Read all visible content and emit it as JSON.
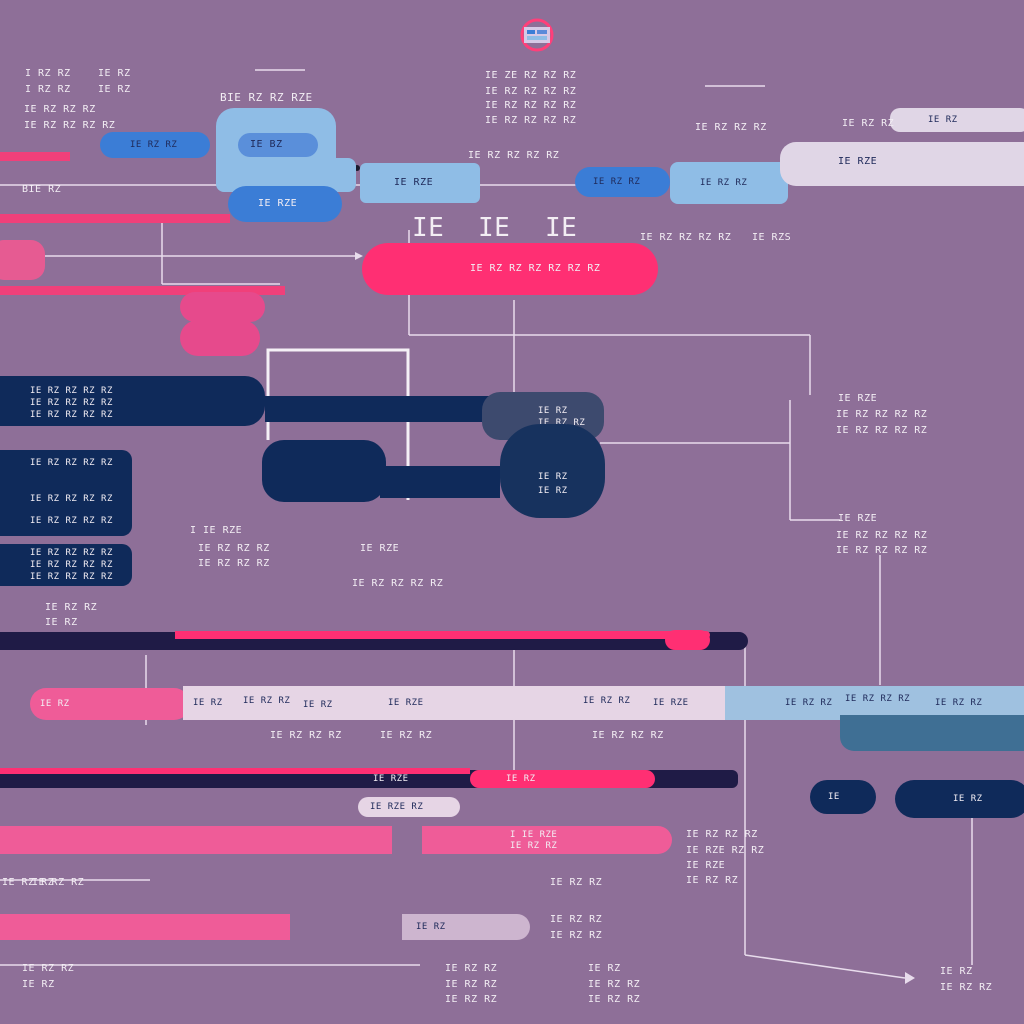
{
  "colors": {
    "background": "#8e6f98",
    "pink": "#f0407a",
    "hot_pink": "#ff2f73",
    "light_blue": "#8fbde6",
    "mid_blue": "#3b7dd6",
    "navy": "#0f2a5a",
    "pale": "#e7dbe7",
    "white": "#f3eef4"
  },
  "icons": [
    "app-logo-icon"
  ],
  "top_labels": {
    "a1": "I RZ RZ",
    "a2": "I RZ RZ",
    "b1": "IE RZ",
    "b2": "IE RZ",
    "c": "BIE RZ RZ RZE",
    "d1": "IE ZE RZ RZ RZ",
    "d2": "IE RZ RZ RZ RZ",
    "d3": "IE RZ RZ RZ RZ",
    "e": "IE RZ RZ RZ RZ",
    "f": "IE RZ RZ RZ",
    "g": "IE RZ RZ RZ RZ",
    "h": "BIE RZ"
  },
  "nodes": {
    "top_left_blue": "IE RZ RZ",
    "top_left_light": "IE BZ",
    "blue_oval": "IE RZE",
    "mid_light": "IE RZE",
    "mid_blue_small": "IE RZ RZ",
    "mid_light_small": "IE RZ RZ",
    "right_pale": "IE RZE",
    "right_pale_b": "IE RZ",
    "big_title_1": "IE",
    "big_title_2": "IE",
    "big_title_3": "IE",
    "pink_main": "IE RZ RZ RZ RZ RZ RZ",
    "side_label": "IE RZ RZ RZ RZ",
    "side_label_b": "IE RZS"
  },
  "navy_blocks": {
    "row1": [
      "IE RZ RZ RZ RZ",
      "IE RZ RZ RZ RZ",
      "IE RZ RZ RZ RZ"
    ],
    "row2": [
      "IE RZ RZ RZ RZ",
      "IE RZ RZ RZ RZ",
      "IE RZ RZ RZ RZ"
    ],
    "row3": [
      "IE RZ RZ RZ RZ",
      "IE RZ RZ RZ RZ",
      "IE RZ RZ RZ RZ"
    ],
    "center": [
      "IE RZ",
      "IE RZ RZ"
    ],
    "center_b": [
      "IE RZ",
      "IE RZ"
    ]
  },
  "mid_labels": {
    "m1": "I IE RZE",
    "m2": "IE RZ RZ RZ",
    "m3": "IE RZ RZ RZ",
    "m4": "IE RZE",
    "m5": "IE RZ RZ RZ RZ",
    "m6": "IE RZ RZ",
    "m7": "IE RZ"
  },
  "right_labels": {
    "r1": "IE RZ RZ",
    "r2": "IE RZ RZ RZ",
    "r3": "IE RZ RZ RZ RZ",
    "r4": "IE RZE",
    "r5": "IE RZ RZ RZ RZ",
    "r6": "IE RZ RZ RZ RZ"
  },
  "timeline": {
    "t1": "IE RZ",
    "t2": "IE RZ RZ RZ",
    "t3": "IE RZ RZ",
    "t4": "IE RZ RZ RZ",
    "t5": "IE RZ RZ",
    "t6": "IE RZ RZ RZ",
    "t7": "IE RZ",
    "t8": "IE RZE",
    "t9": "IE RZ RZ",
    "t10": "IE RZE",
    "t11": "IE RZ RZ"
  },
  "bottom": {
    "button_a": "IE",
    "button_b": "IE RZ",
    "chip": "IE RZE RZ",
    "b1": "I IE RZE",
    "b2": "IE RZ RZ",
    "b3": "IE RZ RZ RZ",
    "b4": "IE RZE RZ RZ",
    "b5": "IE RZE",
    "b6": "IE RZ RZ",
    "b7": "IE RZ RZ",
    "b8": "IE RZ RZ",
    "b9": "IE RZ RZ",
    "b10": "IE RZ",
    "b11": "IE RZ RZ",
    "b12": "IE RZ RZ",
    "b13": "IE RZ RZ",
    "b14": "IE RZ"
  }
}
